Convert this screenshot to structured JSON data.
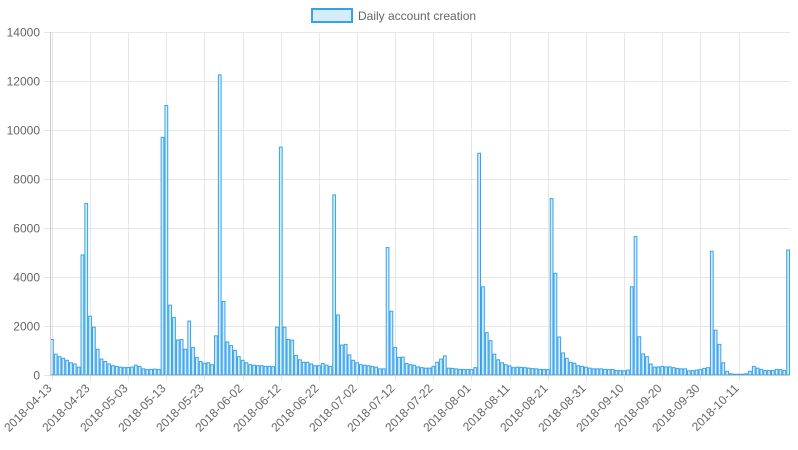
{
  "chart_data": {
    "type": "bar",
    "legend": {
      "label": "Daily account creation",
      "position": "top-center"
    },
    "grid": true,
    "colors": {
      "bar_fill": "#d6ecf9",
      "bar_stroke": "#36a2eb",
      "grid": "#e6e6e6",
      "tick_text": "#666666"
    },
    "x": {
      "start_date": "2018-04-13",
      "end_date": "2018-10-11",
      "tick_labels": [
        "2018-04-13",
        "2018-04-23",
        "2018-05-03",
        "2018-05-13",
        "2018-05-23",
        "2018-06-02",
        "2018-06-12",
        "2018-06-22",
        "2018-07-02",
        "2018-07-12",
        "2018-07-22",
        "2018-08-01",
        "2018-08-11",
        "2018-08-21",
        "2018-08-31",
        "2018-09-10",
        "2018-09-20",
        "2018-09-30",
        "2018-10-11"
      ]
    },
    "y": {
      "ylim": [
        0,
        14000
      ],
      "ticks": [
        0,
        2000,
        4000,
        6000,
        8000,
        10000,
        12000,
        14000
      ]
    },
    "values": [
      1450,
      850,
      750,
      680,
      600,
      500,
      450,
      320,
      4900,
      7000,
      2400,
      1950,
      1050,
      650,
      550,
      450,
      380,
      350,
      320,
      300,
      310,
      320,
      400,
      350,
      250,
      220,
      230,
      240,
      230,
      9700,
      11000,
      2850,
      2350,
      1430,
      1450,
      1050,
      2200,
      1120,
      720,
      550,
      480,
      500,
      420,
      1600,
      12250,
      3000,
      1350,
      1200,
      1000,
      750,
      600,
      500,
      420,
      400,
      380,
      380,
      350,
      350,
      340,
      1950,
      9300,
      1950,
      1450,
      1420,
      800,
      620,
      520,
      520,
      450,
      380,
      380,
      470,
      400,
      350,
      7350,
      2450,
      1220,
      1250,
      820,
      600,
      500,
      420,
      400,
      380,
      350,
      320,
      250,
      250,
      5200,
      2600,
      1120,
      720,
      730,
      470,
      420,
      400,
      330,
      300,
      280,
      280,
      350,
      520,
      650,
      780,
      280,
      270,
      250,
      230,
      230,
      220,
      220,
      300,
      9050,
      3600,
      1730,
      1400,
      850,
      620,
      500,
      420,
      370,
      300,
      320,
      310,
      300,
      280,
      260,
      250,
      230,
      230,
      220,
      7200,
      4150,
      1550,
      900,
      680,
      520,
      480,
      380,
      350,
      320,
      280,
      250,
      250,
      250,
      230,
      220,
      230,
      180,
      180,
      170,
      200,
      3600,
      5650,
      1560,
      860,
      750,
      450,
      320,
      330,
      350,
      330,
      330,
      300,
      270,
      250,
      250,
      170,
      180,
      200,
      220,
      270,
      300,
      5050,
      1830,
      1250,
      500,
      150,
      50,
      30,
      30,
      30,
      50,
      150,
      350,
      280,
      230,
      180,
      180,
      180,
      230,
      220,
      180,
      5100
    ]
  }
}
